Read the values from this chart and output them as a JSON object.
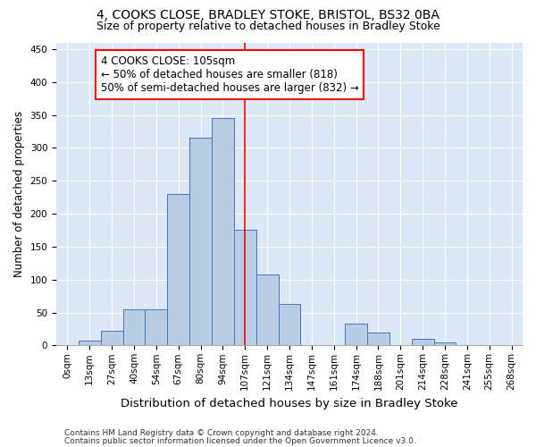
{
  "title1": "4, COOKS CLOSE, BRADLEY STOKE, BRISTOL, BS32 0BA",
  "title2": "Size of property relative to detached houses in Bradley Stoke",
  "xlabel": "Distribution of detached houses by size in Bradley Stoke",
  "ylabel": "Number of detached properties",
  "categories": [
    "0sqm",
    "13sqm",
    "27sqm",
    "40sqm",
    "54sqm",
    "67sqm",
    "80sqm",
    "94sqm",
    "107sqm",
    "121sqm",
    "134sqm",
    "147sqm",
    "161sqm",
    "174sqm",
    "188sqm",
    "201sqm",
    "214sqm",
    "228sqm",
    "241sqm",
    "255sqm",
    "268sqm"
  ],
  "bar_heights": [
    0,
    7,
    22,
    55,
    55,
    230,
    315,
    345,
    175,
    108,
    63,
    0,
    0,
    33,
    20,
    0,
    10,
    5,
    0,
    0,
    0
  ],
  "bar_color": "#b8cce4",
  "bar_edge_color": "#4472c4",
  "vline_color": "red",
  "vline_pos": 8,
  "annotation_text": "4 COOKS CLOSE: 105sqm\n← 50% of detached houses are smaller (818)\n50% of semi-detached houses are larger (832) →",
  "box_edge_color": "red",
  "ylim": [
    0,
    460
  ],
  "yticks": [
    0,
    50,
    100,
    150,
    200,
    250,
    300,
    350,
    400,
    450
  ],
  "footer1": "Contains HM Land Registry data © Crown copyright and database right 2024.",
  "footer2": "Contains public sector information licensed under the Open Government Licence v3.0.",
  "bg_color": "#dce8f5",
  "title1_fontsize": 10,
  "title2_fontsize": 9,
  "xlabel_fontsize": 9.5,
  "ylabel_fontsize": 8.5,
  "tick_fontsize": 7.5,
  "annotation_fontsize": 8.5,
  "footer_fontsize": 6.5
}
